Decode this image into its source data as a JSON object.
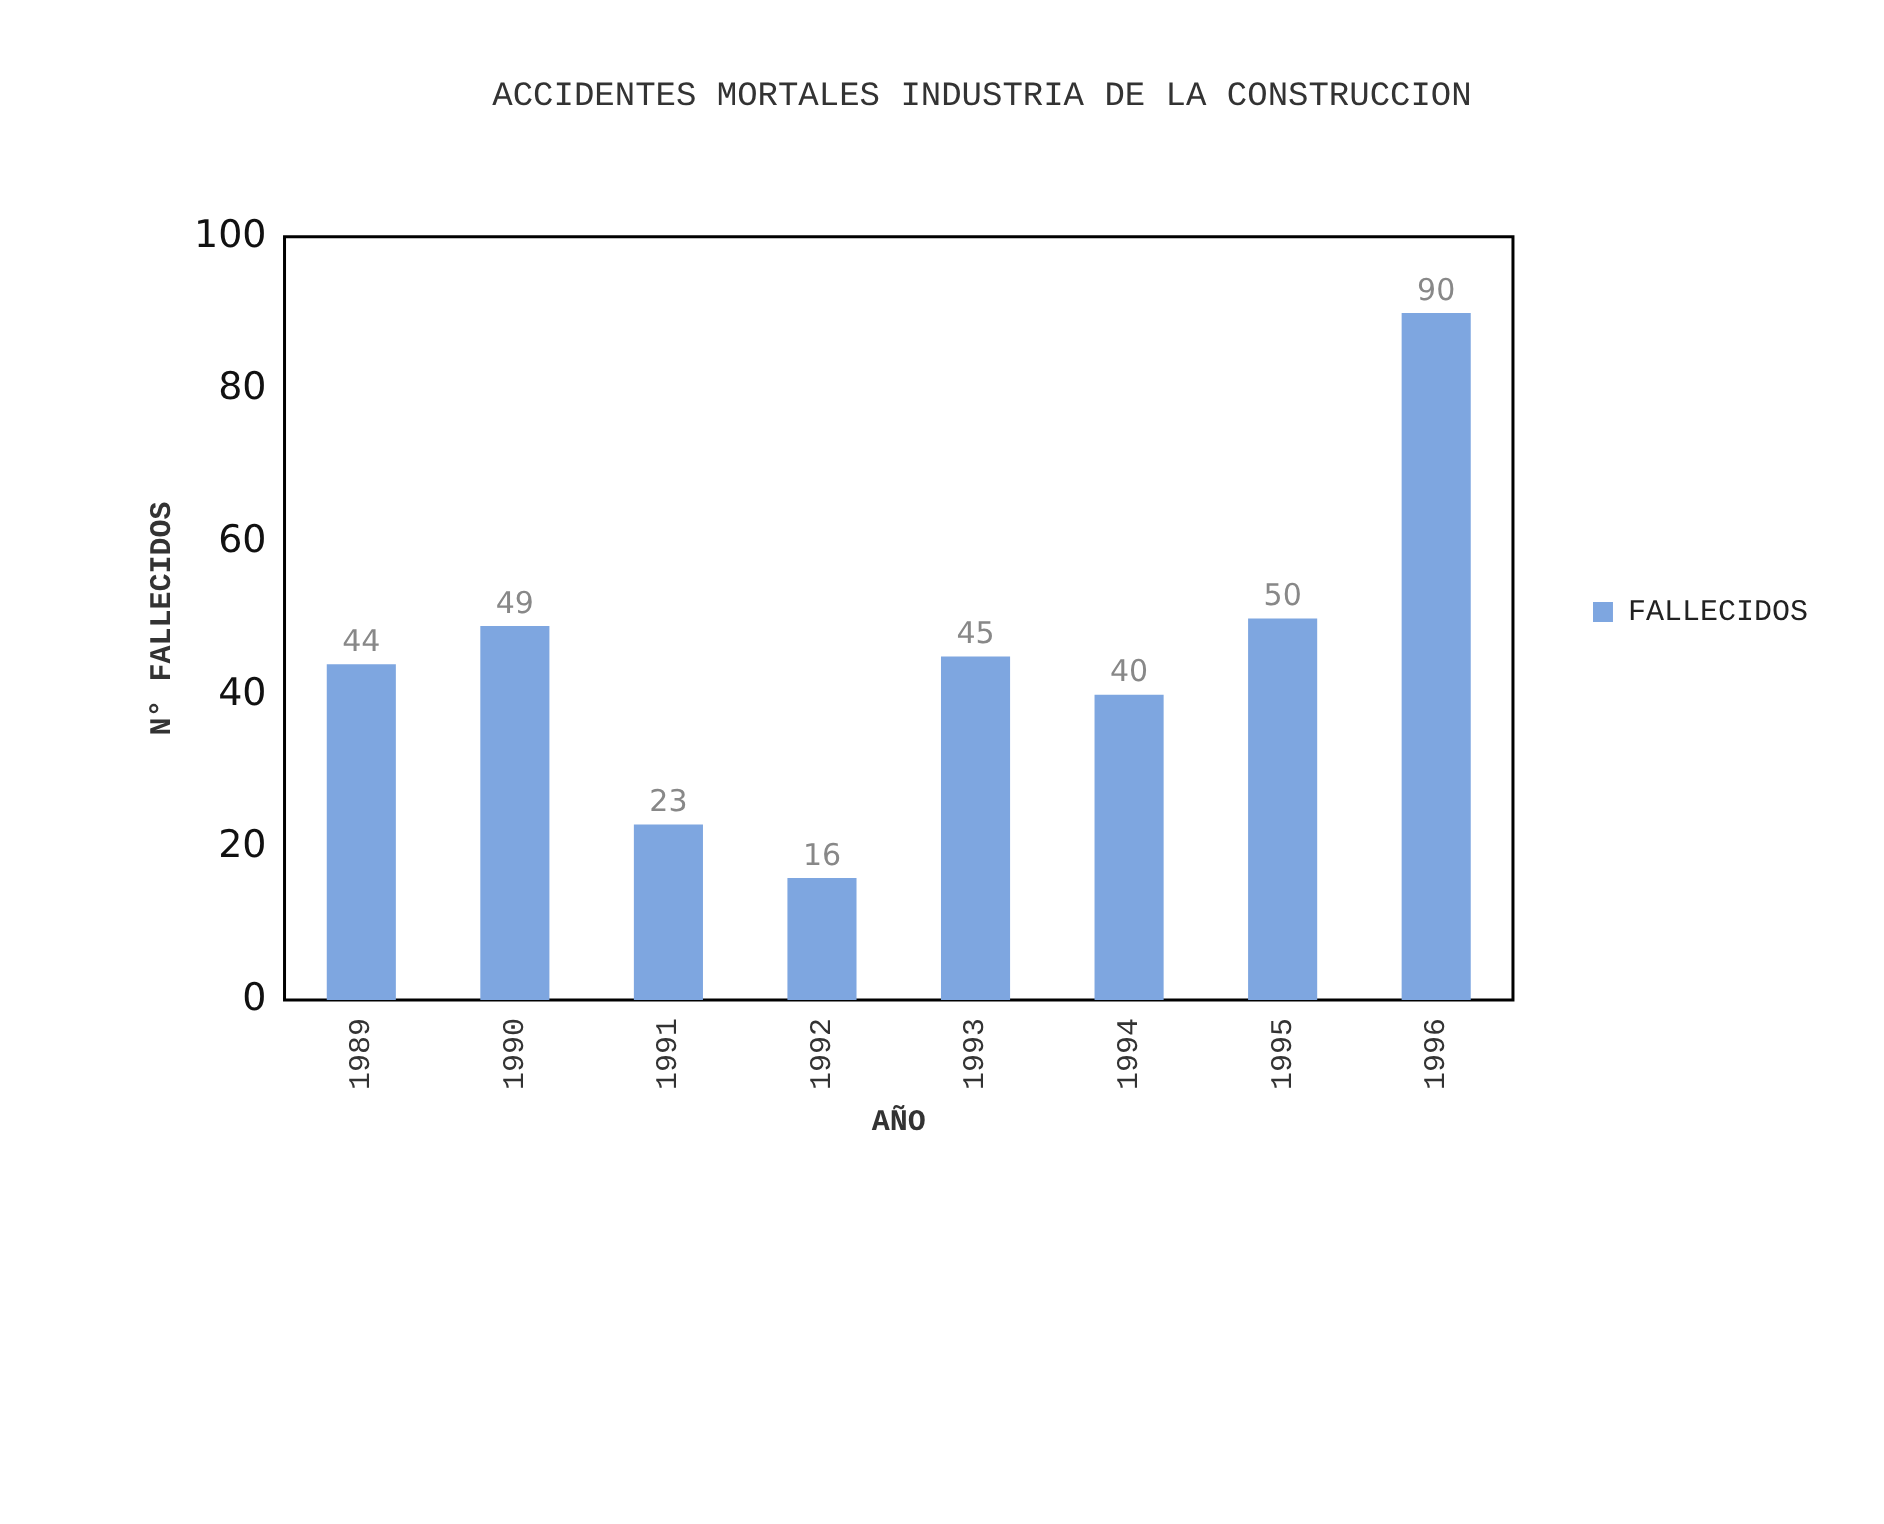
{
  "chart_data": {
    "type": "bar",
    "title": "ACCIDENTES MORTALES INDUSTRIA DE LA CONSTRUCCION",
    "xlabel": "AÑO",
    "ylabel": "N° FALLECIDOS",
    "categories": [
      "1989",
      "1990",
      "1991",
      "1992",
      "1993",
      "1994",
      "1995",
      "1996"
    ],
    "series": [
      {
        "name": "FALLECIDOS",
        "color": "#7ea6e0",
        "values": [
          44,
          49,
          23,
          16,
          45,
          40,
          50,
          90
        ]
      }
    ],
    "ylim": [
      0,
      100
    ],
    "yticks": [
      0,
      20,
      40,
      60,
      80,
      100
    ],
    "grid": false,
    "legend": "right",
    "data_labels": true
  }
}
